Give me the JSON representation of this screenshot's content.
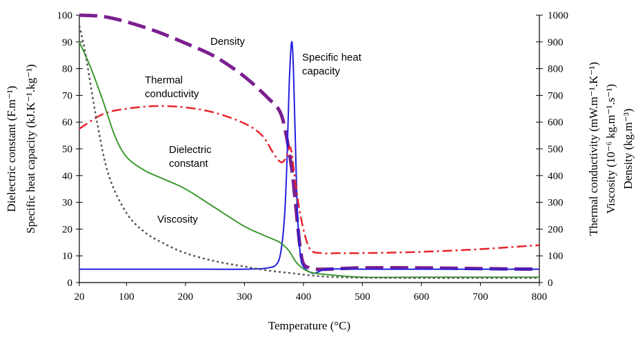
{
  "chart_data": {
    "type": "line",
    "xlabel": "Temperature (°C)",
    "x_ticks": [
      20,
      100,
      200,
      300,
      400,
      500,
      600,
      700,
      800
    ],
    "xlim": [
      20,
      800
    ],
    "y_left": {
      "lines": [
        "Dielectric constant (F.m⁻¹)",
        "Specific heat capacity (kJ.K⁻¹.kg⁻¹)"
      ],
      "ticks": [
        0,
        10,
        20,
        30,
        40,
        50,
        60,
        70,
        80,
        90,
        100
      ],
      "ylim": [
        0,
        100
      ]
    },
    "y_right": {
      "lines": [
        "Thermal conductivity (mW.m⁻¹.K⁻¹)",
        "Viscosity (10⁻⁶ kg.m⁻¹.s⁻¹)",
        "Density (kg.m⁻³)"
      ],
      "ticks": [
        0,
        100,
        200,
        300,
        400,
        500,
        600,
        700,
        800,
        900,
        1000
      ],
      "ylim": [
        0,
        1000
      ]
    },
    "series": [
      {
        "name": "Density",
        "axis": "right",
        "color": "#7B1F8F",
        "style": "long-dash",
        "label": "Density",
        "x": [
          20,
          60,
          100,
          150,
          200,
          250,
          300,
          340,
          360,
          370,
          380,
          385,
          390,
          395,
          400,
          410,
          420,
          440,
          500,
          600,
          700,
          800
        ],
        "y": [
          1000,
          995,
          975,
          940,
          895,
          845,
          770,
          690,
          640,
          560,
          430,
          330,
          220,
          120,
          70,
          55,
          50,
          50,
          55,
          55,
          52,
          50
        ]
      },
      {
        "name": "Specific heat capacity",
        "axis": "left",
        "color": "#1F1FE0",
        "style": "solid",
        "label": "Specific heat capacity",
        "x": [
          20,
          100,
          200,
          300,
          340,
          355,
          362,
          368,
          372,
          376,
          380,
          383,
          386,
          390,
          395,
          400,
          410,
          420,
          440,
          500,
          600,
          700,
          800
        ],
        "y": [
          5,
          5,
          5,
          5,
          5.5,
          7,
          12,
          25,
          45,
          75,
          90,
          80,
          55,
          25,
          10,
          6,
          4,
          3.5,
          5,
          5,
          5,
          5,
          5
        ]
      },
      {
        "name": "Thermal conductivity",
        "axis": "right",
        "color": "#E8232A",
        "style": "dash-dot",
        "label": "Thermal conductivity",
        "x": [
          20,
          60,
          100,
          150,
          200,
          250,
          300,
          330,
          350,
          362,
          370,
          378,
          385,
          395,
          410,
          430,
          460,
          500,
          600,
          700,
          800
        ],
        "y": [
          575,
          630,
          650,
          660,
          655,
          635,
          595,
          550,
          480,
          450,
          465,
          505,
          400,
          250,
          130,
          110,
          110,
          110,
          115,
          125,
          140
        ]
      },
      {
        "name": "Dielectric constant",
        "axis": "left",
        "color": "#3A9A2E",
        "style": "solid",
        "label": "Dielectric constant",
        "x": [
          20,
          40,
          60,
          80,
          100,
          130,
          160,
          200,
          250,
          300,
          340,
          360,
          375,
          390,
          410,
          440,
          500,
          600,
          700,
          800
        ],
        "y": [
          90,
          80,
          68,
          55,
          47,
          42,
          39,
          35,
          28,
          21,
          17,
          15,
          12,
          7,
          4,
          3,
          2,
          2,
          2,
          2
        ]
      },
      {
        "name": "Viscosity",
        "axis": "right",
        "color": "#555555",
        "style": "dotted",
        "label": "Viscosity",
        "x": [
          20,
          30,
          50,
          70,
          100,
          130,
          160,
          200,
          250,
          300,
          340,
          380,
          420,
          460,
          500,
          600,
          700,
          800
        ],
        "y": [
          960,
          860,
          600,
          400,
          260,
          190,
          150,
          110,
          80,
          60,
          45,
          35,
          25,
          20,
          18,
          17,
          17,
          17
        ]
      }
    ]
  }
}
